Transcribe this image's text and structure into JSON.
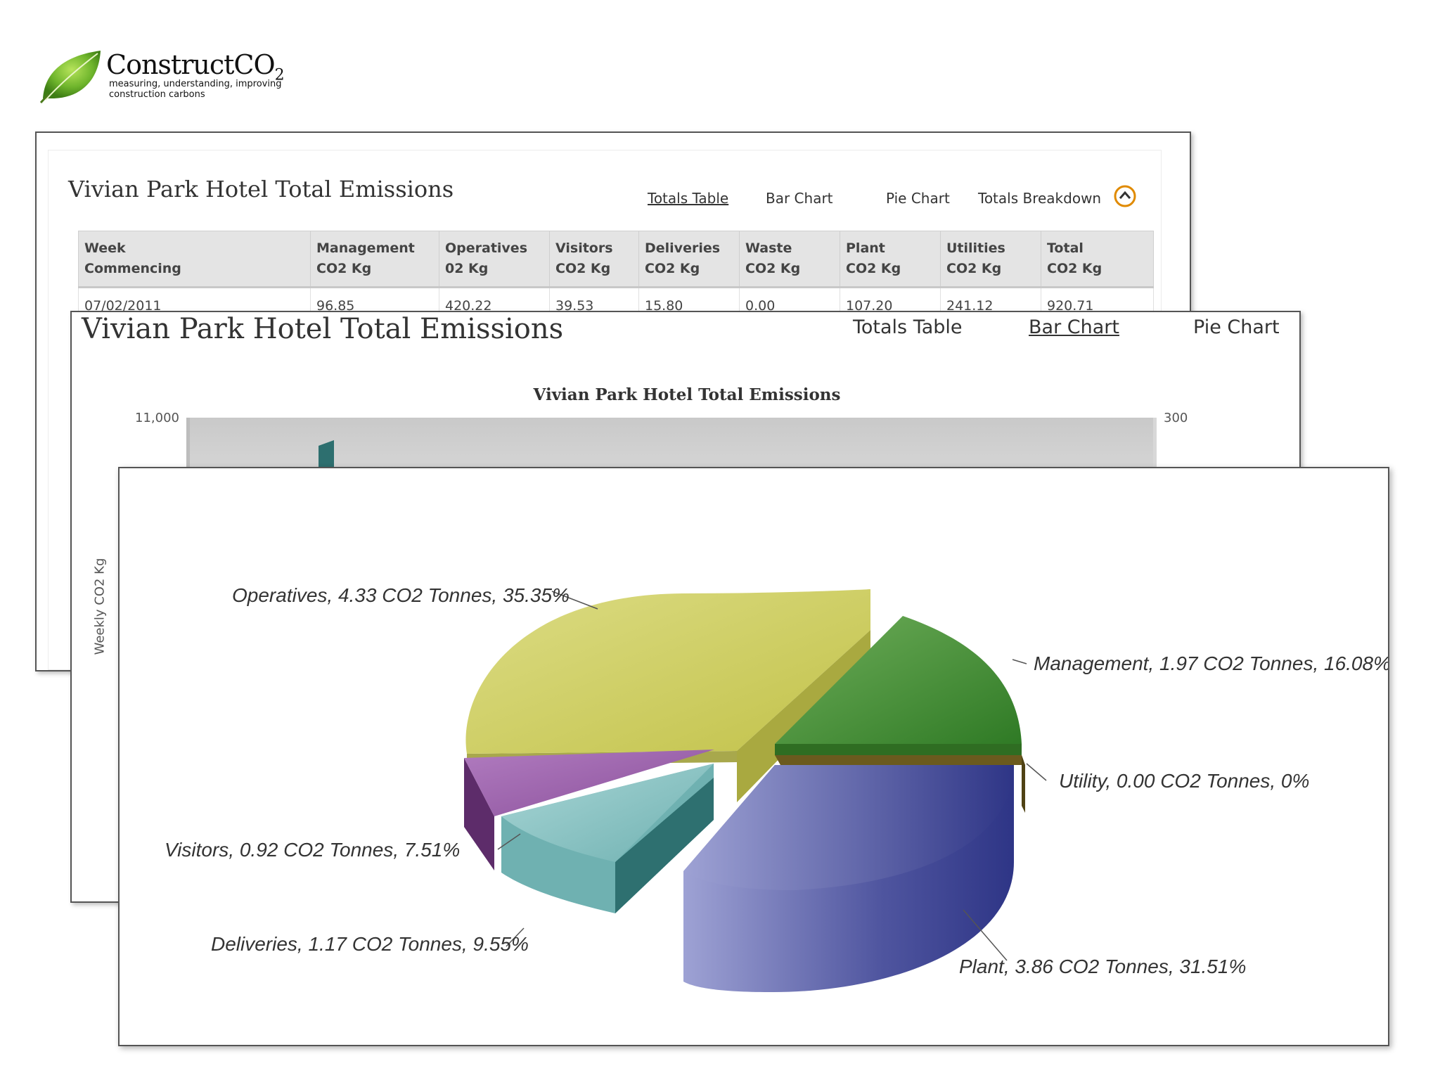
{
  "logo": {
    "name": "ConstructCO",
    "name_sub": "2",
    "tagline": "measuring, understanding, improving\nconstruction carbons"
  },
  "totals_panel": {
    "title": "Vivian Park Hotel Total Emissions",
    "tabs": [
      "Totals Table",
      "Bar Chart",
      "Pie Chart",
      "Totals Breakdown"
    ],
    "active_tab": "Totals Table",
    "collapse_icon": "chevron-up-circle-icon",
    "columns": [
      [
        "Week",
        "Commencing"
      ],
      [
        "Management",
        "CO2 Kg"
      ],
      [
        "Operatives",
        "02 Kg"
      ],
      [
        "Visitors",
        "CO2 Kg"
      ],
      [
        "Deliveries",
        "CO2 Kg"
      ],
      [
        "Waste",
        "CO2 Kg"
      ],
      [
        "Plant",
        "CO2 Kg"
      ],
      [
        "Utilities",
        "CO2 Kg"
      ],
      [
        "Total",
        "CO2 Kg"
      ]
    ],
    "rows": [
      [
        "07/02/2011",
        "96.85",
        "420.22",
        "39.53",
        "15.80",
        "0.00",
        "107.20",
        "241.12",
        "920.71"
      ]
    ]
  },
  "bar_panel": {
    "title": "Vivian Park Hotel Total Emissions",
    "tabs": [
      "Totals Table",
      "Bar Chart",
      "Pie Chart"
    ],
    "active_tab": "Bar Chart",
    "chart_title": "Vivian Park Hotel Total Emissions",
    "y_left_top_tick": "11,000",
    "y_right_top_tick": "300",
    "ylabel": "Weekly CO2 Kg"
  },
  "pie_panel": {
    "accent_colors": {
      "Operatives": "#c9c95a",
      "Management": "#4a8f3c",
      "Utility": "#6b5a1e",
      "Plant": "#4a4f99",
      "Deliveries": "#7bbcbc",
      "Visitors": "#8a4f9a"
    }
  },
  "chart_data": [
    {
      "type": "bar",
      "title": "Vivian Park Hotel Total Emissions",
      "ylabel": "Weekly CO2 Kg",
      "ylim": [
        0,
        11000
      ],
      "y2lim": [
        0,
        300
      ],
      "categories": [],
      "values": []
    },
    {
      "type": "pie",
      "title": "",
      "slices": [
        {
          "name": "Operatives",
          "value": 4.33,
          "percent": 35.35,
          "label": "Operatives, 4.33 CO2 Tonnes, 35.35%"
        },
        {
          "name": "Management",
          "value": 1.97,
          "percent": 16.08,
          "label": "Management, 1.97 CO2 Tonnes, 16.08%"
        },
        {
          "name": "Utility",
          "value": 0.0,
          "percent": 0,
          "label": "Utility, 0.00 CO2 Tonnes, 0%"
        },
        {
          "name": "Plant",
          "value": 3.86,
          "percent": 31.51,
          "label": "Plant, 3.86 CO2 Tonnes, 31.51%"
        },
        {
          "name": "Deliveries",
          "value": 1.17,
          "percent": 9.55,
          "label": "Deliveries, 1.17 CO2 Tonnes, 9.55%"
        },
        {
          "name": "Visitors",
          "value": 0.92,
          "percent": 7.51,
          "label": "Visitors, 0.92 CO2 Tonnes, 7.51%"
        }
      ]
    }
  ]
}
